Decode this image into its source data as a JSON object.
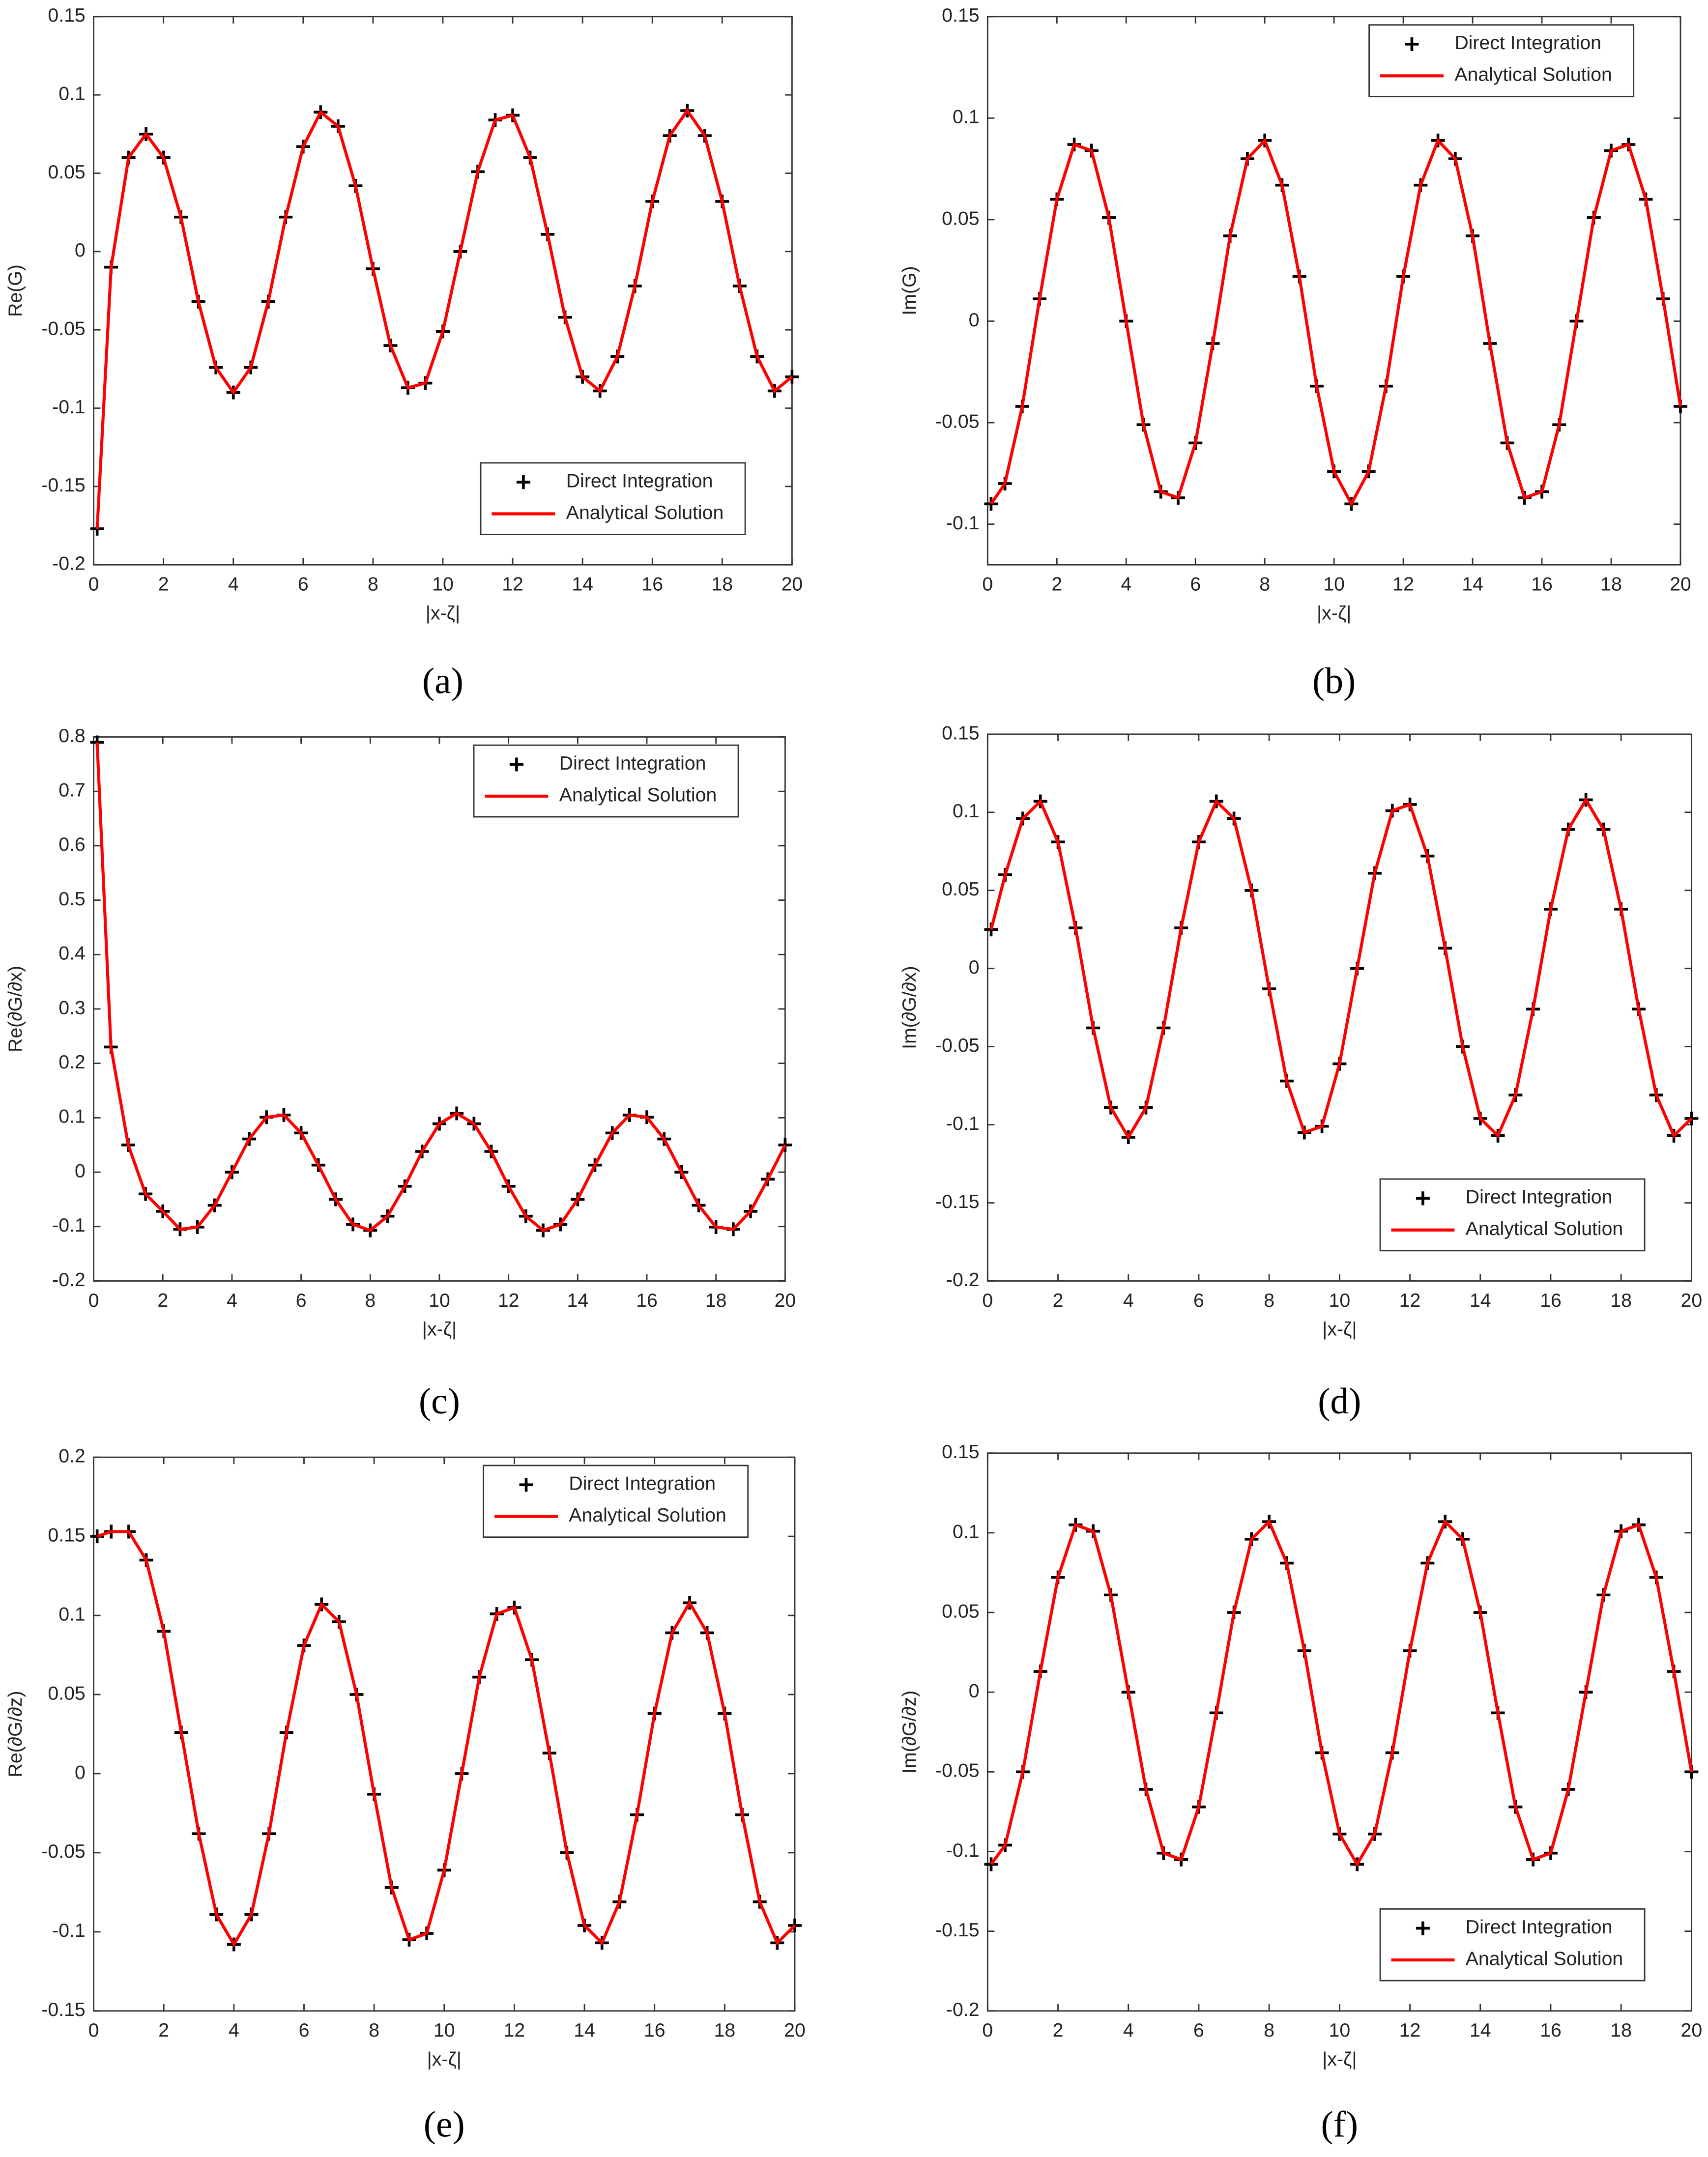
{
  "chart_data": [
    {
      "type": "line",
      "caption": "(a)",
      "xlabel": "|x-ζ|",
      "ylabel": "Re(G)",
      "legend": "lower right",
      "xlim": [
        0,
        20
      ],
      "xticks": [
        0,
        2,
        4,
        6,
        8,
        10,
        12,
        14,
        16,
        18,
        20
      ],
      "ylim": [
        -0.2,
        0.15
      ],
      "yticks": [
        -0.2,
        -0.15,
        -0.1,
        -0.05,
        0,
        0.05,
        0.1,
        0.15
      ],
      "x": [
        0.1,
        0.5,
        1,
        1.5,
        2,
        2.5,
        3,
        3.5,
        4,
        4.5,
        5,
        5.5,
        6,
        6.5,
        7,
        7.5,
        8,
        8.5,
        9,
        9.5,
        10,
        10.5,
        11,
        11.5,
        12,
        12.5,
        13,
        13.5,
        14,
        14.5,
        15,
        15.5,
        16,
        16.5,
        17,
        17.5,
        18,
        18.5,
        19,
        19.5,
        20
      ],
      "series": [
        {
          "name": "Direct Integration",
          "color": "#000000",
          "marker": "+",
          "linestyle": "none",
          "values": [
            -0.177,
            -0.01,
            0.06,
            0.075,
            0.06,
            0.022,
            -0.032,
            -0.074,
            -0.09,
            -0.074,
            -0.032,
            0.022,
            0.067,
            0.089,
            0.08,
            0.042,
            -0.011,
            -0.06,
            -0.087,
            -0.084,
            -0.051,
            0,
            0.051,
            0.084,
            0.087,
            0.06,
            0.011,
            -0.042,
            -0.08,
            -0.089,
            -0.067,
            -0.022,
            0.032,
            0.074,
            0.09,
            0.074,
            0.032,
            -0.022,
            -0.067,
            -0.089,
            -0.08
          ]
        },
        {
          "name": "Analytical Solution",
          "color": "#ff0000",
          "marker": "none",
          "linestyle": "solid",
          "values": [
            -0.177,
            -0.01,
            0.06,
            0.075,
            0.06,
            0.022,
            -0.032,
            -0.074,
            -0.09,
            -0.074,
            -0.032,
            0.022,
            0.067,
            0.089,
            0.08,
            0.042,
            -0.011,
            -0.06,
            -0.087,
            -0.084,
            -0.051,
            0,
            0.051,
            0.084,
            0.087,
            0.06,
            0.011,
            -0.042,
            -0.08,
            -0.089,
            -0.067,
            -0.022,
            0.032,
            0.074,
            0.09,
            0.074,
            0.032,
            -0.022,
            -0.067,
            -0.089,
            -0.08
          ]
        }
      ]
    },
    {
      "type": "line",
      "caption": "(b)",
      "xlabel": "|x-ζ|",
      "ylabel": "Im(G)",
      "legend": "upper right",
      "xlim": [
        0,
        20
      ],
      "xticks": [
        0,
        2,
        4,
        6,
        8,
        10,
        12,
        14,
        16,
        18,
        20
      ],
      "ylim": [
        -0.12,
        0.15
      ],
      "yticks": [
        -0.1,
        -0.05,
        0,
        0.05,
        0.1,
        0.15
      ],
      "x": [
        0.1,
        0.5,
        1,
        1.5,
        2,
        2.5,
        3,
        3.5,
        4,
        4.5,
        5,
        5.5,
        6,
        6.5,
        7,
        7.5,
        8,
        8.5,
        9,
        9.5,
        10,
        10.5,
        11,
        11.5,
        12,
        12.5,
        13,
        13.5,
        14,
        14.5,
        15,
        15.5,
        16,
        16.5,
        17,
        17.5,
        18,
        18.5,
        19,
        19.5,
        20
      ],
      "series": [
        {
          "name": "Direct Integration",
          "color": "#000000",
          "marker": "+",
          "linestyle": "none",
          "values": [
            -0.09,
            -0.08,
            -0.042,
            0.011,
            0.06,
            0.087,
            0.084,
            0.051,
            0,
            -0.051,
            -0.084,
            -0.087,
            -0.06,
            -0.011,
            0.042,
            0.08,
            0.089,
            0.067,
            0.022,
            -0.032,
            -0.074,
            -0.09,
            -0.074,
            -0.032,
            0.022,
            0.067,
            0.089,
            0.08,
            0.042,
            -0.011,
            -0.06,
            -0.087,
            -0.084,
            -0.051,
            0,
            0.051,
            0.084,
            0.087,
            0.06,
            0.011,
            -0.042
          ]
        },
        {
          "name": "Analytical Solution",
          "color": "#ff0000",
          "marker": "none",
          "linestyle": "solid",
          "values": [
            -0.09,
            -0.08,
            -0.042,
            0.011,
            0.06,
            0.087,
            0.084,
            0.051,
            0,
            -0.051,
            -0.084,
            -0.087,
            -0.06,
            -0.011,
            0.042,
            0.08,
            0.089,
            0.067,
            0.022,
            -0.032,
            -0.074,
            -0.09,
            -0.074,
            -0.032,
            0.022,
            0.067,
            0.089,
            0.08,
            0.042,
            -0.011,
            -0.06,
            -0.087,
            -0.084,
            -0.051,
            0,
            0.051,
            0.084,
            0.087,
            0.06,
            0.011,
            -0.042
          ]
        }
      ]
    },
    {
      "type": "line",
      "caption": "(c)",
      "xlabel": "|x-ζ|",
      "ylabel": "Re(∂G/∂x)",
      "legend": "upper right",
      "xlim": [
        0,
        20
      ],
      "xticks": [
        0,
        2,
        4,
        6,
        8,
        10,
        12,
        14,
        16,
        18,
        20
      ],
      "ylim": [
        -0.2,
        0.8
      ],
      "yticks": [
        -0.2,
        -0.1,
        0,
        0.1,
        0.2,
        0.3,
        0.4,
        0.5,
        0.6,
        0.7,
        0.8
      ],
      "x": [
        0.1,
        0.5,
        1,
        1.5,
        2,
        2.5,
        3,
        3.5,
        4,
        4.5,
        5,
        5.5,
        6,
        6.5,
        7,
        7.5,
        8,
        8.5,
        9,
        9.5,
        10,
        10.5,
        11,
        11.5,
        12,
        12.5,
        13,
        13.5,
        14,
        14.5,
        15,
        15.5,
        16,
        16.5,
        17,
        17.5,
        18,
        18.5,
        19,
        19.5,
        20
      ],
      "series": [
        {
          "name": "Direct Integration",
          "color": "#000000",
          "marker": "+",
          "linestyle": "none",
          "values": [
            0.79,
            0.23,
            0.05,
            -0.04,
            -0.072,
            -0.105,
            -0.101,
            -0.061,
            0,
            0.061,
            0.101,
            0.105,
            0.072,
            0.013,
            -0.05,
            -0.096,
            -0.107,
            -0.081,
            -0.026,
            0.038,
            0.089,
            0.108,
            0.089,
            0.038,
            -0.026,
            -0.081,
            -0.107,
            -0.096,
            -0.05,
            0.013,
            0.072,
            0.105,
            0.101,
            0.061,
            0,
            -0.061,
            -0.101,
            -0.105,
            -0.072,
            -0.013,
            0.05
          ]
        },
        {
          "name": "Analytical Solution",
          "color": "#ff0000",
          "marker": "none",
          "linestyle": "solid",
          "values": [
            0.79,
            0.23,
            0.05,
            -0.04,
            -0.072,
            -0.105,
            -0.101,
            -0.061,
            0,
            0.061,
            0.101,
            0.105,
            0.072,
            0.013,
            -0.05,
            -0.096,
            -0.107,
            -0.081,
            -0.026,
            0.038,
            0.089,
            0.108,
            0.089,
            0.038,
            -0.026,
            -0.081,
            -0.107,
            -0.096,
            -0.05,
            0.013,
            0.072,
            0.105,
            0.101,
            0.061,
            0,
            -0.061,
            -0.101,
            -0.105,
            -0.072,
            -0.013,
            0.05
          ]
        }
      ]
    },
    {
      "type": "line",
      "caption": "(d)",
      "xlabel": "|x-ζ|",
      "ylabel": "Im(∂G/∂x)",
      "legend": "lower right",
      "xlim": [
        0,
        20
      ],
      "xticks": [
        0,
        2,
        4,
        6,
        8,
        10,
        12,
        14,
        16,
        18,
        20
      ],
      "ylim": [
        -0.2,
        0.15
      ],
      "yticks": [
        -0.2,
        -0.15,
        -0.1,
        -0.05,
        0,
        0.05,
        0.1,
        0.15
      ],
      "x": [
        0.1,
        0.5,
        1,
        1.5,
        2,
        2.5,
        3,
        3.5,
        4,
        4.5,
        5,
        5.5,
        6,
        6.5,
        7,
        7.5,
        8,
        8.5,
        9,
        9.5,
        10,
        10.5,
        11,
        11.5,
        12,
        12.5,
        13,
        13.5,
        14,
        14.5,
        15,
        15.5,
        16,
        16.5,
        17,
        17.5,
        18,
        18.5,
        19,
        19.5,
        20
      ],
      "series": [
        {
          "name": "Direct Integration",
          "color": "#000000",
          "marker": "+",
          "linestyle": "none",
          "values": [
            0.025,
            0.06,
            0.096,
            0.107,
            0.081,
            0.026,
            -0.038,
            -0.089,
            -0.108,
            -0.089,
            -0.038,
            0.026,
            0.081,
            0.107,
            0.096,
            0.05,
            -0.013,
            -0.072,
            -0.105,
            -0.101,
            -0.061,
            0,
            0.061,
            0.101,
            0.105,
            0.072,
            0.013,
            -0.05,
            -0.096,
            -0.107,
            -0.081,
            -0.026,
            0.038,
            0.089,
            0.108,
            0.089,
            0.038,
            -0.026,
            -0.081,
            -0.107,
            -0.096
          ]
        },
        {
          "name": "Analytical Solution",
          "color": "#ff0000",
          "marker": "none",
          "linestyle": "solid",
          "values": [
            0.025,
            0.06,
            0.096,
            0.107,
            0.081,
            0.026,
            -0.038,
            -0.089,
            -0.108,
            -0.089,
            -0.038,
            0.026,
            0.081,
            0.107,
            0.096,
            0.05,
            -0.013,
            -0.072,
            -0.105,
            -0.101,
            -0.061,
            0,
            0.061,
            0.101,
            0.105,
            0.072,
            0.013,
            -0.05,
            -0.096,
            -0.107,
            -0.081,
            -0.026,
            0.038,
            0.089,
            0.108,
            0.089,
            0.038,
            -0.026,
            -0.081,
            -0.107,
            -0.096
          ]
        }
      ]
    },
    {
      "type": "line",
      "caption": "(e)",
      "xlabel": "|x-ζ|",
      "ylabel": "Re(∂G/∂z)",
      "legend": "upper right",
      "xlim": [
        0,
        20
      ],
      "xticks": [
        0,
        2,
        4,
        6,
        8,
        10,
        12,
        14,
        16,
        18,
        20
      ],
      "ylim": [
        -0.15,
        0.2
      ],
      "yticks": [
        -0.15,
        -0.1,
        -0.05,
        0,
        0.05,
        0.1,
        0.15,
        0.2
      ],
      "x": [
        0.1,
        0.5,
        1,
        1.5,
        2,
        2.5,
        3,
        3.5,
        4,
        4.5,
        5,
        5.5,
        6,
        6.5,
        7,
        7.5,
        8,
        8.5,
        9,
        9.5,
        10,
        10.5,
        11,
        11.5,
        12,
        12.5,
        13,
        13.5,
        14,
        14.5,
        15,
        15.5,
        16,
        16.5,
        17,
        17.5,
        18,
        18.5,
        19,
        19.5,
        20
      ],
      "series": [
        {
          "name": "Direct Integration",
          "color": "#000000",
          "marker": "+",
          "linestyle": "none",
          "values": [
            0.15,
            0.153,
            0.153,
            0.135,
            0.09,
            0.026,
            -0.038,
            -0.089,
            -0.108,
            -0.089,
            -0.038,
            0.026,
            0.081,
            0.107,
            0.096,
            0.05,
            -0.013,
            -0.072,
            -0.105,
            -0.101,
            -0.061,
            0,
            0.061,
            0.101,
            0.105,
            0.072,
            0.013,
            -0.05,
            -0.096,
            -0.107,
            -0.081,
            -0.026,
            0.038,
            0.089,
            0.108,
            0.089,
            0.038,
            -0.026,
            -0.081,
            -0.107,
            -0.096
          ]
        },
        {
          "name": "Analytical Solution",
          "color": "#ff0000",
          "marker": "none",
          "linestyle": "solid",
          "values": [
            0.15,
            0.153,
            0.153,
            0.135,
            0.09,
            0.026,
            -0.038,
            -0.089,
            -0.108,
            -0.089,
            -0.038,
            0.026,
            0.081,
            0.107,
            0.096,
            0.05,
            -0.013,
            -0.072,
            -0.105,
            -0.101,
            -0.061,
            0,
            0.061,
            0.101,
            0.105,
            0.072,
            0.013,
            -0.05,
            -0.096,
            -0.107,
            -0.081,
            -0.026,
            0.038,
            0.089,
            0.108,
            0.089,
            0.038,
            -0.026,
            -0.081,
            -0.107,
            -0.096
          ]
        }
      ]
    },
    {
      "type": "line",
      "caption": "(f)",
      "xlabel": "|x-ζ|",
      "ylabel": "Im(∂G/∂z)",
      "legend": "lower right",
      "xlim": [
        0,
        20
      ],
      "xticks": [
        0,
        2,
        4,
        6,
        8,
        10,
        12,
        14,
        16,
        18,
        20
      ],
      "ylim": [
        -0.2,
        0.15
      ],
      "yticks": [
        -0.2,
        -0.15,
        -0.1,
        -0.05,
        0,
        0.05,
        0.1,
        0.15
      ],
      "x": [
        0.1,
        0.5,
        1,
        1.5,
        2,
        2.5,
        3,
        3.5,
        4,
        4.5,
        5,
        5.5,
        6,
        6.5,
        7,
        7.5,
        8,
        8.5,
        9,
        9.5,
        10,
        10.5,
        11,
        11.5,
        12,
        12.5,
        13,
        13.5,
        14,
        14.5,
        15,
        15.5,
        16,
        16.5,
        17,
        17.5,
        18,
        18.5,
        19,
        19.5,
        20
      ],
      "series": [
        {
          "name": "Direct Integration",
          "color": "#000000",
          "marker": "+",
          "linestyle": "none",
          "values": [
            -0.108,
            -0.096,
            -0.05,
            0.013,
            0.072,
            0.105,
            0.101,
            0.061,
            0,
            -0.061,
            -0.101,
            -0.105,
            -0.072,
            -0.013,
            0.05,
            0.096,
            0.107,
            0.081,
            0.026,
            -0.038,
            -0.089,
            -0.108,
            -0.089,
            -0.038,
            0.026,
            0.081,
            0.107,
            0.096,
            0.05,
            -0.013,
            -0.072,
            -0.105,
            -0.101,
            -0.061,
            0,
            0.061,
            0.101,
            0.105,
            0.072,
            0.013,
            -0.05
          ]
        },
        {
          "name": "Analytical Solution",
          "color": "#ff0000",
          "marker": "none",
          "linestyle": "solid",
          "values": [
            -0.108,
            -0.096,
            -0.05,
            0.013,
            0.072,
            0.105,
            0.101,
            0.061,
            0,
            -0.061,
            -0.101,
            -0.105,
            -0.072,
            -0.013,
            0.05,
            0.096,
            0.107,
            0.081,
            0.026,
            -0.038,
            -0.089,
            -0.108,
            -0.089,
            -0.038,
            0.026,
            0.081,
            0.107,
            0.096,
            0.05,
            -0.013,
            -0.072,
            -0.105,
            -0.101,
            -0.061,
            0,
            0.061,
            0.101,
            0.105,
            0.072,
            0.013,
            -0.05
          ]
        }
      ]
    }
  ]
}
